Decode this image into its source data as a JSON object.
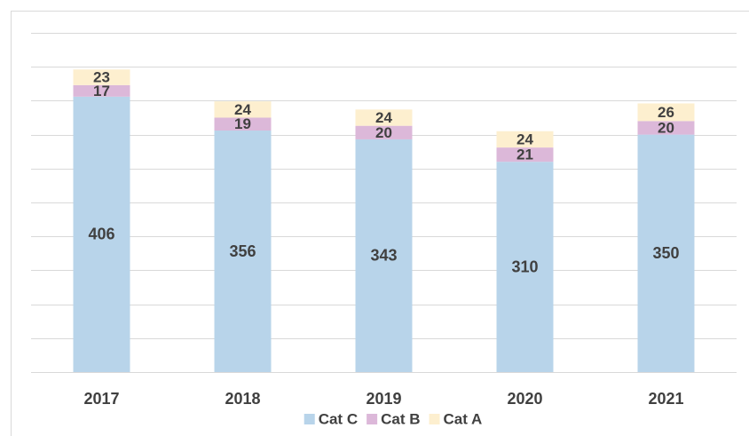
{
  "chart_data": {
    "type": "stacked_bar",
    "categories": [
      "2017",
      "2018",
      "2019",
      "2020",
      "2021"
    ],
    "series": [
      {
        "name": "Cat C",
        "color": "#b8d4ea",
        "values": [
          406,
          356,
          343,
          310,
          350
        ]
      },
      {
        "name": "Cat B",
        "color": "#dcb8d9",
        "values": [
          17,
          19,
          20,
          21,
          20
        ]
      },
      {
        "name": "Cat A",
        "color": "#fdefcf",
        "values": [
          23,
          24,
          24,
          24,
          26
        ]
      }
    ],
    "ylim": [
      0,
      500
    ],
    "yticks": [
      0,
      50,
      100,
      150,
      200,
      250,
      300,
      350,
      400,
      450,
      500
    ],
    "grid": true,
    "legend": "bottom"
  }
}
